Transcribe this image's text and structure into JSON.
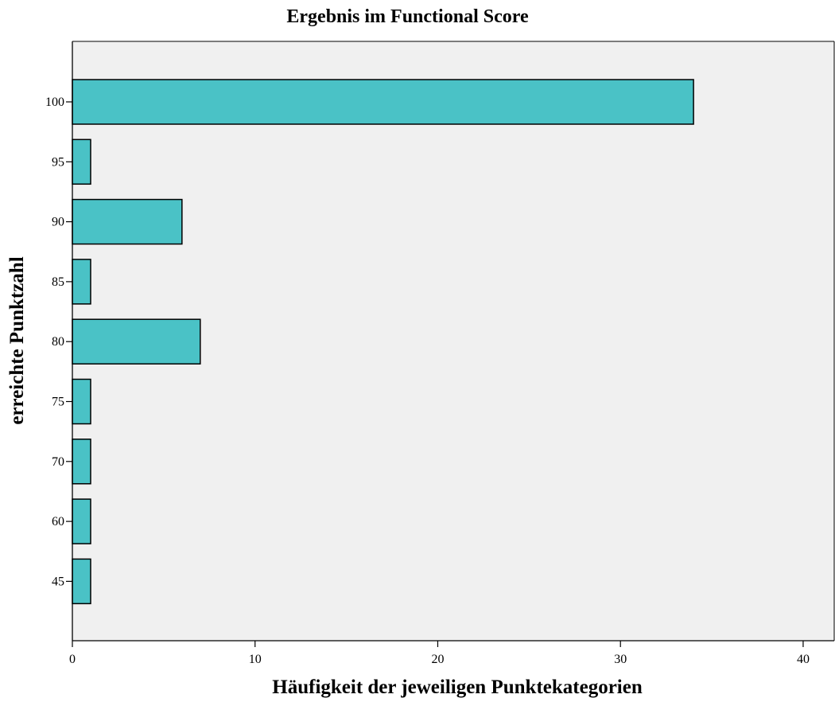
{
  "chart_data": {
    "type": "bar",
    "orientation": "horizontal",
    "title": "Ergebnis im Functional Score",
    "xlabel": "Häufigkeit der jeweiligen Punktekategorien",
    "ylabel": "erreichte Punktzahl",
    "categories": [
      "100",
      "95",
      "90",
      "85",
      "80",
      "75",
      "70",
      "60",
      "45"
    ],
    "values": [
      34,
      1,
      6,
      1,
      7,
      1,
      1,
      1,
      1
    ],
    "xlim": [
      0,
      41.7
    ],
    "xticks": [
      0,
      10,
      20,
      30,
      40
    ],
    "grid": false,
    "colors": {
      "bar": "#4AC2C6",
      "bar_edge": "#000000",
      "plot_background": "#F0F0F0"
    }
  }
}
